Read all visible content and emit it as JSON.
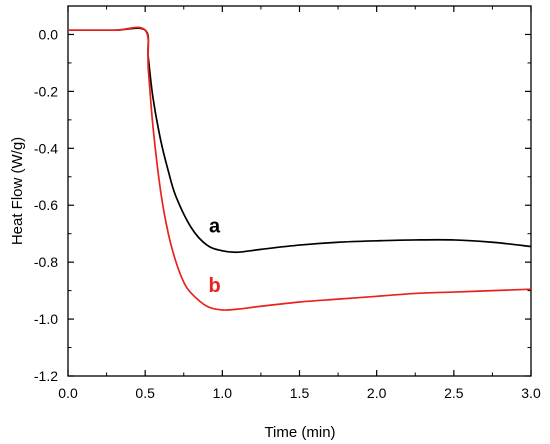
{
  "chart_data": {
    "type": "line",
    "title": "",
    "xlabel": "Time (min)",
    "ylabel": "Heat Flow (W/g)",
    "xlim": [
      0.0,
      3.0
    ],
    "ylim": [
      -1.2,
      0.1
    ],
    "grid": false,
    "xticks": [
      0.0,
      0.5,
      1.0,
      1.5,
      2.0,
      2.5,
      3.0
    ],
    "xtick_labels": [
      "0.0",
      "0.5",
      "1.0",
      "1.5",
      "2.0",
      "2.5",
      "3.0"
    ],
    "yticks": [
      0.0,
      -0.2,
      -0.4,
      -0.6,
      -0.8,
      -1.0,
      -1.2
    ],
    "ytick_labels": [
      "0.0",
      "-0.2",
      "-0.4",
      "-0.6",
      "-0.8",
      "-1.0",
      "-1.2"
    ],
    "series": [
      {
        "name": "a",
        "color": "#000000",
        "x": [
          0.0,
          0.3,
          0.5,
          0.52,
          0.55,
          0.6,
          0.65,
          0.7,
          0.8,
          0.9,
          1.0,
          1.1,
          1.25,
          1.5,
          1.75,
          2.0,
          2.25,
          2.5,
          2.75,
          3.0
        ],
        "y": [
          0.015,
          0.015,
          0.015,
          -0.08,
          -0.22,
          -0.37,
          -0.48,
          -0.57,
          -0.68,
          -0.74,
          -0.76,
          -0.765,
          -0.755,
          -0.74,
          -0.73,
          -0.725,
          -0.722,
          -0.722,
          -0.73,
          -0.745
        ]
      },
      {
        "name": "b",
        "color": "#e8231e",
        "x": [
          0.0,
          0.3,
          0.5,
          0.52,
          0.55,
          0.6,
          0.65,
          0.7,
          0.75,
          0.8,
          0.9,
          1.0,
          1.1,
          1.25,
          1.5,
          1.75,
          2.0,
          2.25,
          2.5,
          2.75,
          3.0
        ],
        "y": [
          0.015,
          0.015,
          0.015,
          -0.12,
          -0.32,
          -0.55,
          -0.7,
          -0.8,
          -0.87,
          -0.91,
          -0.955,
          -0.968,
          -0.965,
          -0.955,
          -0.94,
          -0.93,
          -0.92,
          -0.91,
          -0.905,
          -0.9,
          -0.895
        ]
      }
    ],
    "annotations": [
      {
        "text": "a",
        "x": 0.95,
        "y": -0.695,
        "color": "#000000"
      },
      {
        "text": "b",
        "x": 0.95,
        "y": -0.905,
        "color": "#e8231e"
      }
    ]
  }
}
